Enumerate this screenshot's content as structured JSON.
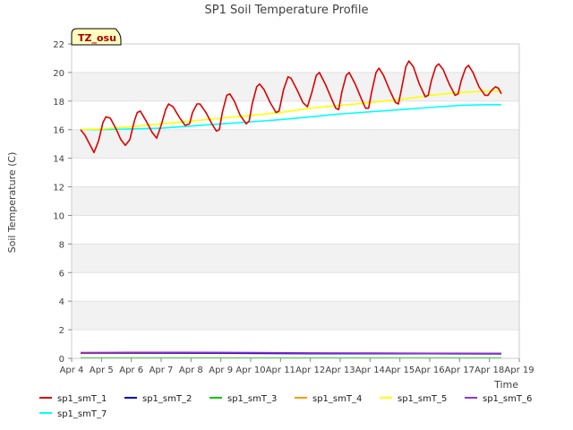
{
  "chart_data": {
    "type": "line",
    "title": "SP1 Soil Temperature Profile",
    "xlabel": "Time",
    "ylabel": "Soil Temperature (C)",
    "badge": "TZ_osu",
    "xlim": [
      4,
      19
    ],
    "ylim": [
      0,
      22
    ],
    "x_ticks": [
      {
        "v": 4,
        "label": "Apr 4"
      },
      {
        "v": 5,
        "label": "Apr 5"
      },
      {
        "v": 6,
        "label": "Apr 6"
      },
      {
        "v": 7,
        "label": "Apr 7"
      },
      {
        "v": 8,
        "label": "Apr 8"
      },
      {
        "v": 9,
        "label": "Apr 9"
      },
      {
        "v": 10,
        "label": "Apr 10"
      },
      {
        "v": 11,
        "label": "Apr 11"
      },
      {
        "v": 12,
        "label": "Apr 12"
      },
      {
        "v": 13,
        "label": "Apr 13"
      },
      {
        "v": 14,
        "label": "Apr 14"
      },
      {
        "v": 15,
        "label": "Apr 15"
      },
      {
        "v": 16,
        "label": "Apr 16"
      },
      {
        "v": 17,
        "label": "Apr 17"
      },
      {
        "v": 18,
        "label": "Apr 18"
      },
      {
        "v": 19,
        "label": "Apr 19"
      }
    ],
    "y_ticks": [
      0,
      2,
      4,
      6,
      8,
      10,
      12,
      14,
      16,
      18,
      20,
      22
    ],
    "grid": true,
    "legend_placement": "bottom",
    "series": [
      {
        "name": "sp1_smT_1",
        "color": "#dd0000",
        "points": [
          [
            4.3,
            16.0
          ],
          [
            4.45,
            15.6
          ],
          [
            4.6,
            15.0
          ],
          [
            4.75,
            14.4
          ],
          [
            4.9,
            15.2
          ],
          [
            5.05,
            16.5
          ],
          [
            5.15,
            16.9
          ],
          [
            5.3,
            16.8
          ],
          [
            5.5,
            16.0
          ],
          [
            5.65,
            15.3
          ],
          [
            5.8,
            14.9
          ],
          [
            5.95,
            15.3
          ],
          [
            6.1,
            16.6
          ],
          [
            6.2,
            17.2
          ],
          [
            6.3,
            17.3
          ],
          [
            6.5,
            16.6
          ],
          [
            6.7,
            15.8
          ],
          [
            6.85,
            15.4
          ],
          [
            7.0,
            16.3
          ],
          [
            7.15,
            17.4
          ],
          [
            7.25,
            17.8
          ],
          [
            7.4,
            17.6
          ],
          [
            7.6,
            16.9
          ],
          [
            7.8,
            16.3
          ],
          [
            7.95,
            16.4
          ],
          [
            8.05,
            17.2
          ],
          [
            8.2,
            17.8
          ],
          [
            8.3,
            17.8
          ],
          [
            8.5,
            17.2
          ],
          [
            8.7,
            16.4
          ],
          [
            8.85,
            15.9
          ],
          [
            8.95,
            16.0
          ],
          [
            9.05,
            17.2
          ],
          [
            9.2,
            18.4
          ],
          [
            9.3,
            18.5
          ],
          [
            9.45,
            18.0
          ],
          [
            9.65,
            17.0
          ],
          [
            9.85,
            16.4
          ],
          [
            9.95,
            16.6
          ],
          [
            10.05,
            17.8
          ],
          [
            10.2,
            19.0
          ],
          [
            10.3,
            19.2
          ],
          [
            10.45,
            18.8
          ],
          [
            10.65,
            17.9
          ],
          [
            10.85,
            17.2
          ],
          [
            10.95,
            17.3
          ],
          [
            11.1,
            18.8
          ],
          [
            11.25,
            19.7
          ],
          [
            11.35,
            19.6
          ],
          [
            11.55,
            18.8
          ],
          [
            11.75,
            17.9
          ],
          [
            11.9,
            17.6
          ],
          [
            12.05,
            18.6
          ],
          [
            12.2,
            19.8
          ],
          [
            12.3,
            20.0
          ],
          [
            12.5,
            19.2
          ],
          [
            12.7,
            18.2
          ],
          [
            12.85,
            17.5
          ],
          [
            12.95,
            17.4
          ],
          [
            13.05,
            18.6
          ],
          [
            13.2,
            19.8
          ],
          [
            13.3,
            20.0
          ],
          [
            13.5,
            19.2
          ],
          [
            13.7,
            18.2
          ],
          [
            13.85,
            17.5
          ],
          [
            13.95,
            17.5
          ],
          [
            14.05,
            18.6
          ],
          [
            14.2,
            20.0
          ],
          [
            14.3,
            20.3
          ],
          [
            14.45,
            19.8
          ],
          [
            14.65,
            18.8
          ],
          [
            14.85,
            17.9
          ],
          [
            14.95,
            17.8
          ],
          [
            15.05,
            18.8
          ],
          [
            15.2,
            20.4
          ],
          [
            15.3,
            20.8
          ],
          [
            15.45,
            20.4
          ],
          [
            15.65,
            19.2
          ],
          [
            15.85,
            18.3
          ],
          [
            15.95,
            18.4
          ],
          [
            16.05,
            19.4
          ],
          [
            16.2,
            20.4
          ],
          [
            16.3,
            20.6
          ],
          [
            16.45,
            20.2
          ],
          [
            16.65,
            19.2
          ],
          [
            16.85,
            18.4
          ],
          [
            16.95,
            18.5
          ],
          [
            17.05,
            19.4
          ],
          [
            17.2,
            20.3
          ],
          [
            17.3,
            20.5
          ],
          [
            17.45,
            20.0
          ],
          [
            17.65,
            19.0
          ],
          [
            17.85,
            18.4
          ],
          [
            17.95,
            18.4
          ],
          [
            18.05,
            18.7
          ],
          [
            18.2,
            19.0
          ],
          [
            18.3,
            18.9
          ],
          [
            18.4,
            18.5
          ]
        ]
      },
      {
        "name": "sp1_smT_2",
        "color": "#0000cc",
        "points": [
          [
            4.3,
            0.38
          ],
          [
            6.0,
            0.38
          ],
          [
            8.0,
            0.37
          ],
          [
            10.0,
            0.36
          ],
          [
            12.0,
            0.33
          ],
          [
            14.0,
            0.33
          ],
          [
            16.0,
            0.33
          ],
          [
            18.4,
            0.32
          ]
        ]
      },
      {
        "name": "sp1_smT_3",
        "color": "#00cc00",
        "points": [
          [
            4.3,
            0.02
          ],
          [
            18.4,
            0.02
          ]
        ]
      },
      {
        "name": "sp1_smT_4",
        "color": "#ff9900",
        "points": [
          [
            4.3,
            0.35
          ],
          [
            8.0,
            0.36
          ],
          [
            12.0,
            0.33
          ],
          [
            18.4,
            0.33
          ]
        ]
      },
      {
        "name": "sp1_smT_5",
        "color": "#ffff00",
        "points": [
          [
            4.3,
            16.0
          ],
          [
            5.0,
            16.05
          ],
          [
            6.0,
            16.2
          ],
          [
            7.0,
            16.4
          ],
          [
            8.0,
            16.6
          ],
          [
            9.0,
            16.8
          ],
          [
            10.0,
            17.0
          ],
          [
            11.0,
            17.2
          ],
          [
            12.0,
            17.5
          ],
          [
            13.0,
            17.7
          ],
          [
            14.0,
            17.9
          ],
          [
            15.0,
            18.1
          ],
          [
            16.0,
            18.4
          ],
          [
            17.0,
            18.6
          ],
          [
            18.0,
            18.7
          ],
          [
            18.4,
            18.7
          ]
        ]
      },
      {
        "name": "sp1_smT_6",
        "color": "#9933cc",
        "points": [
          [
            4.3,
            0.4
          ],
          [
            6.0,
            0.42
          ],
          [
            8.0,
            0.42
          ],
          [
            10.0,
            0.41
          ],
          [
            12.0,
            0.38
          ],
          [
            14.0,
            0.37
          ],
          [
            16.0,
            0.36
          ],
          [
            18.4,
            0.35
          ]
        ]
      },
      {
        "name": "sp1_smT_7",
        "color": "#00ffff",
        "points": [
          [
            4.3,
            16.0
          ],
          [
            5.0,
            16.0
          ],
          [
            6.0,
            16.05
          ],
          [
            7.0,
            16.1
          ],
          [
            8.0,
            16.25
          ],
          [
            9.0,
            16.4
          ],
          [
            10.0,
            16.55
          ],
          [
            11.0,
            16.7
          ],
          [
            12.0,
            16.9
          ],
          [
            13.0,
            17.1
          ],
          [
            14.0,
            17.25
          ],
          [
            15.0,
            17.4
          ],
          [
            16.0,
            17.55
          ],
          [
            17.0,
            17.7
          ],
          [
            18.0,
            17.75
          ],
          [
            18.4,
            17.75
          ]
        ]
      }
    ]
  }
}
